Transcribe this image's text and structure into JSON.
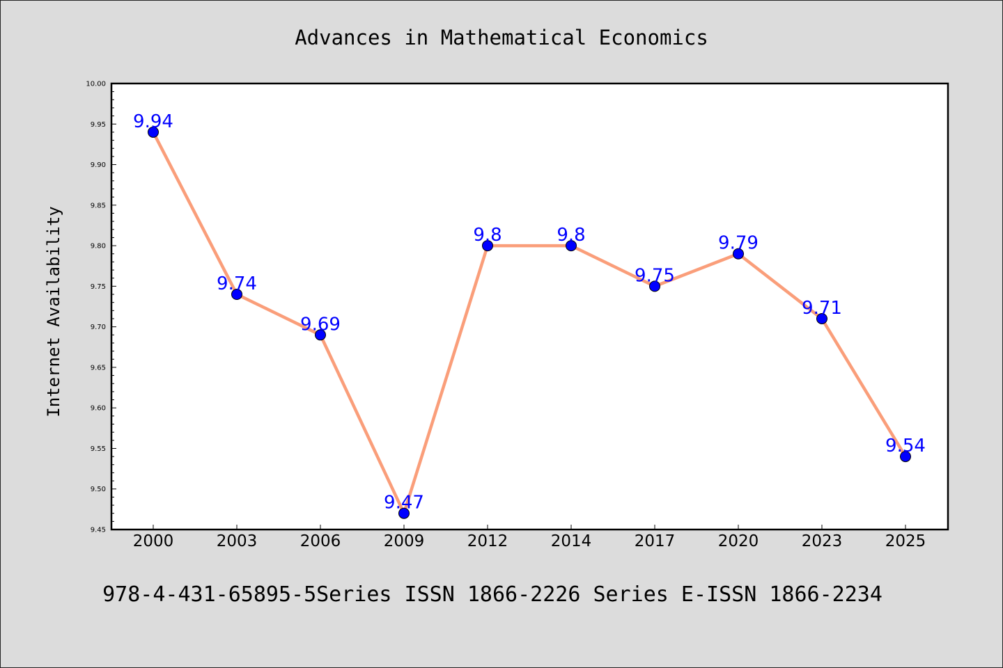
{
  "chart_data": {
    "type": "line",
    "title": "Advances in Mathematical Economics",
    "xlabel": "",
    "ylabel": "Internet Availability",
    "categories": [
      "2000",
      "2003",
      "2006",
      "2009",
      "2012",
      "2014",
      "2017",
      "2020",
      "2023",
      "2025"
    ],
    "series": [
      {
        "values": [
          9.94,
          9.74,
          9.69,
          9.47,
          9.8,
          9.8,
          9.75,
          9.79,
          9.71,
          9.54
        ],
        "labels": [
          "9.94",
          "9.74",
          "9.69",
          "9.47",
          "9.8",
          "9.8",
          "9.75",
          "9.79",
          "9.71",
          "9.54"
        ]
      }
    ],
    "ylim": [
      9.45,
      10.0
    ],
    "yticks": [
      "9.45",
      "9.50",
      "9.55",
      "9.60",
      "9.65",
      "9.70",
      "9.75",
      "9.80",
      "9.85",
      "9.90",
      "9.95",
      "10.00"
    ],
    "grid": false,
    "legend": "none",
    "colors": {
      "line": "#fa9e7a",
      "marker": "#0000ff",
      "data_label": "#0000ff",
      "background": "#dcdcdc",
      "plot_background": "#ffffff"
    }
  },
  "footer": {
    "text": "978-4-431-65895-5Series ISSN 1866-2226 Series E-ISSN 1866-2234"
  }
}
